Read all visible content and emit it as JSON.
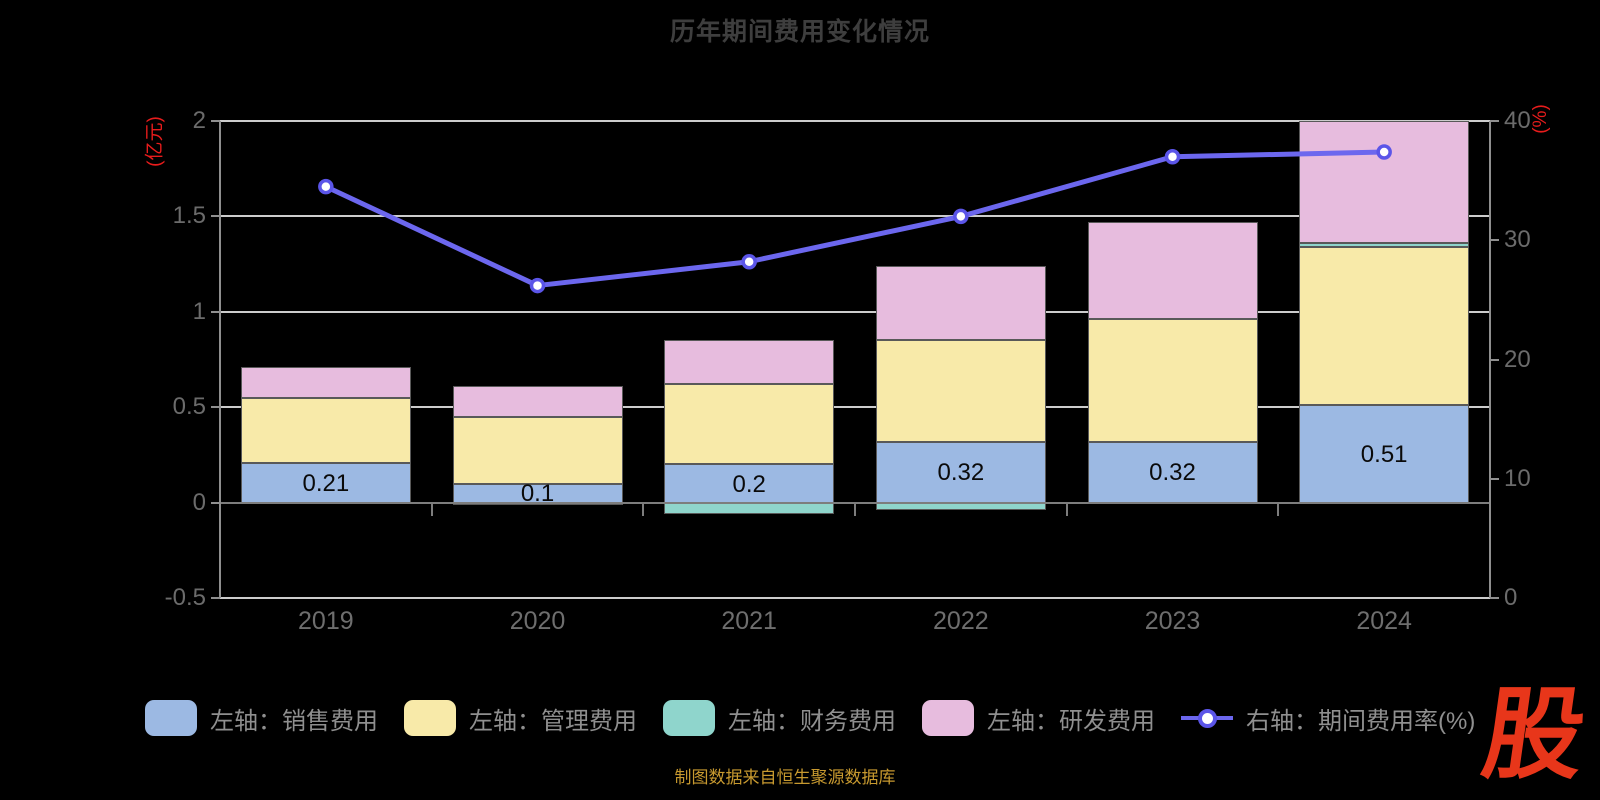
{
  "title": "历年期间费用变化情况",
  "source_note": "制图数据来自恒生聚源数据库",
  "logo_text": "股",
  "left_axis": {
    "unit": "(亿元)",
    "min": -0.5,
    "max": 2,
    "tick_labels": [
      "2",
      "1.5",
      "1",
      "0.5",
      "0",
      "-0.5"
    ],
    "tick_values": [
      2,
      1.5,
      1,
      0.5,
      0,
      -0.5
    ]
  },
  "right_axis": {
    "unit": "(%)",
    "min": 0,
    "max": 40,
    "tick_labels": [
      "40",
      "30",
      "20",
      "10",
      "0"
    ],
    "tick_values": [
      40,
      30,
      20,
      10,
      0
    ]
  },
  "chart_data": {
    "type": "bar",
    "subtype": "stacked-bars-with-line-overlay",
    "categories": [
      "2019",
      "2020",
      "2021",
      "2022",
      "2023",
      "2024"
    ],
    "series": [
      {
        "name": "左轴：销售费用",
        "type": "bar",
        "axis": "left",
        "color": "#9cb9e3",
        "values": [
          0.21,
          0.1,
          0.2,
          0.32,
          0.32,
          0.51
        ]
      },
      {
        "name": "左轴：管理费用",
        "type": "bar",
        "axis": "left",
        "color": "#f8eaa9",
        "values": [
          0.34,
          0.35,
          0.42,
          0.53,
          0.64,
          0.83
        ]
      },
      {
        "name": "左轴：财务费用",
        "type": "bar",
        "axis": "left",
        "color": "#8fd5cc",
        "values": [
          0.0,
          -0.01,
          -0.06,
          -0.04,
          0.0,
          0.02
        ]
      },
      {
        "name": "左轴：研发费用",
        "type": "bar",
        "axis": "left",
        "color": "#e7bcde",
        "values": [
          0.16,
          0.16,
          0.23,
          0.39,
          0.51,
          0.64
        ]
      },
      {
        "name": "右轴：期间费用率(%)",
        "type": "line",
        "axis": "right",
        "color": "#6c67ee",
        "values": [
          34.5,
          26.2,
          28.2,
          32.0,
          37.0,
          37.4
        ]
      }
    ],
    "bar_labels": [
      "0.21",
      "0.1",
      "0.2",
      "0.32",
      "0.32",
      "0.51"
    ],
    "title": "历年期间费用变化情况",
    "xlabel": "",
    "ylabel_left": "(亿元)",
    "ylabel_right": "(%)",
    "ylim_left": [
      -0.5,
      2
    ],
    "ylim_right": [
      0,
      40
    ],
    "grid": true,
    "legend_position": "bottom"
  },
  "colors": {
    "background": "#000000",
    "title_text": "#3e3e3e",
    "axis_unit_text": "#e81c1c",
    "tick_text": "#6b6b6b",
    "gridline": "#cccccc",
    "axis_line": "#8f8f8f",
    "bar_label_text": "#0a0a0a",
    "legend_text": "#8f8f8f",
    "source_text": "#c7992f",
    "logo_red": "#e8361a",
    "line_marker_fill": "#ffffff"
  }
}
